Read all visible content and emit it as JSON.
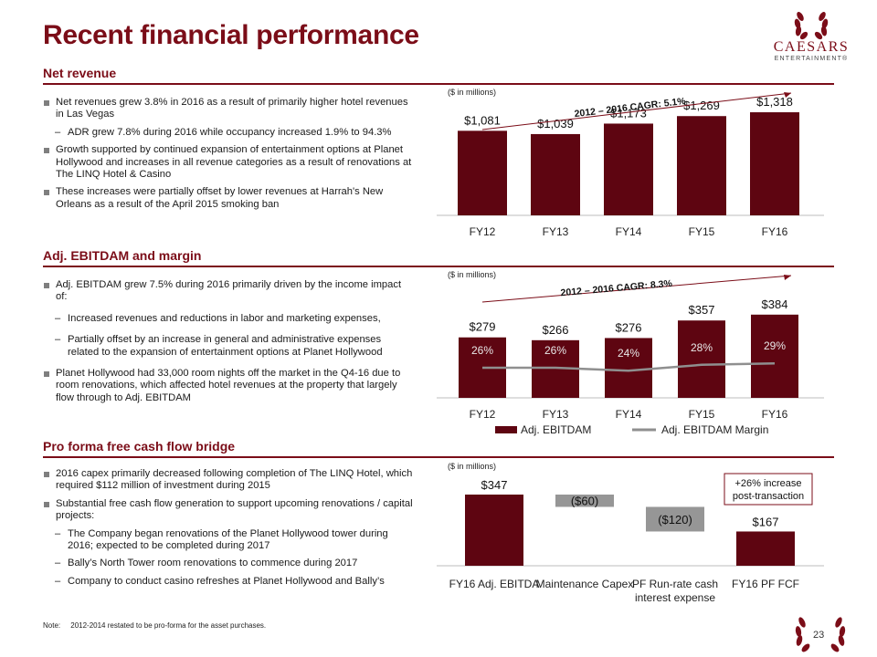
{
  "title": "Recent financial performance",
  "logo": {
    "name": "CAESARS",
    "sub": "ENTERTAINMENT®"
  },
  "sections": {
    "net_revenue": {
      "heading": "Net revenue",
      "bullets": [
        "Net revenues grew 3.8% in 2016 as a result of primarily higher hotel revenues in Las Vegas",
        "ADR grew 7.8% during 2016 while occupancy increased 1.9% to 94.3%",
        "Growth supported by continued expansion of entertainment options at Planet Hollywood and increases in all revenue categories as a result of renovations at The LINQ Hotel & Casino",
        "These increases were partially offset by lower revenues at Harrah's New Orleans as a result of the April 2015 smoking ban"
      ]
    },
    "ebitdam": {
      "heading": "Adj. EBITDAM and margin",
      "bullets": [
        "Adj. EBITDAM grew 7.5% during 2016 primarily driven by the income impact of:",
        "Increased revenues and reductions in labor and marketing expenses,",
        "Partially offset by an increase in general and administrative expenses related to the expansion of entertainment options at Planet Hollywood",
        "Planet Hollywood had 33,000 room nights off the market in the Q4-16 due to room renovations, which affected hotel revenues at the property that largely flow through to Adj. EBITDAM"
      ]
    },
    "fcf": {
      "heading": "Pro forma free cash flow bridge",
      "bullets": [
        "2016 capex primarily decreased following completion of The LINQ Hotel, which required $112 million of investment during 2015",
        "Substantial free cash flow generation to support upcoming renovations / capital projects:",
        "The Company began renovations of the Planet Hollywood tower during 2016; expected to be completed during 2017",
        "Bally’s North Tower room renovations to commence during 2017",
        "Company to conduct casino refreshes at Planet Hollywood and Bally’s"
      ]
    }
  },
  "colors": {
    "accent": "#7b0d18",
    "bar": "#5e0511",
    "gray": "#969696"
  },
  "chart_data": [
    {
      "type": "bar",
      "title": "Net revenue",
      "unit_label": "($ in millions)",
      "cagr_label": "2012 – 2016 CAGR: 5.1%",
      "categories": [
        "FY12",
        "FY13",
        "FY14",
        "FY15",
        "FY16"
      ],
      "values": [
        1081,
        1039,
        1173,
        1269,
        1318
      ],
      "value_labels": [
        "$1,081",
        "$1,039",
        "$1,173",
        "$1,269",
        "$1,318"
      ],
      "ylim": [
        0,
        1400
      ]
    },
    {
      "type": "bar",
      "title": "Adj. EBITDAM and margin",
      "unit_label": "($ in millions)",
      "cagr_label": "2012 – 2016 CAGR: 8.3%",
      "categories": [
        "FY12",
        "FY13",
        "FY14",
        "FY15",
        "FY16"
      ],
      "series": [
        {
          "name": "Adj. EBITDAM",
          "values": [
            279,
            266,
            276,
            357,
            384
          ],
          "labels": [
            "$279",
            "$266",
            "$276",
            "$357",
            "$384"
          ]
        },
        {
          "name": "Adj. EBITDAM Margin",
          "values": [
            26,
            26,
            24,
            28,
            29
          ],
          "labels": [
            "26%",
            "26%",
            "24%",
            "28%",
            "29%"
          ]
        }
      ],
      "ylim": [
        0,
        400
      ]
    },
    {
      "type": "bar",
      "subtype": "waterfall",
      "title": "Pro forma free cash flow bridge",
      "unit_label": "($ in millions)",
      "categories": [
        "FY16 Adj. EBITDA",
        "Maintenance Capex",
        "PF Run-rate cash interest expense",
        "FY16 PF FCF"
      ],
      "values": [
        347,
        -60,
        -120,
        167
      ],
      "value_labels": [
        "$347",
        "($60)",
        "($120)",
        "$167"
      ],
      "callout": "+26% increase post-transaction",
      "ylim": [
        0,
        347
      ]
    }
  ],
  "note": {
    "prefix": "Note:",
    "text": "2012-2014 restated to be pro-forma for the asset purchases."
  },
  "page_number": "23"
}
